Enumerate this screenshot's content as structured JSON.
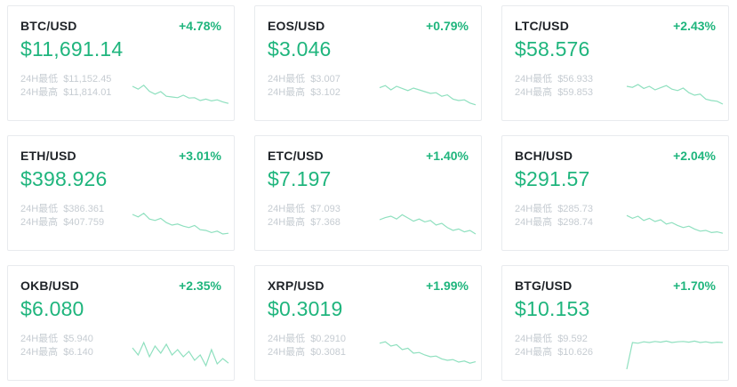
{
  "colors": {
    "accent_up": "#1fb57d",
    "spark_line": "#8fe0bf",
    "muted_text": "#c6ccd2",
    "border": "#e8ebee"
  },
  "tickers": [
    {
      "pair": "BTC/USD",
      "change": "+4.78%",
      "price": "$11,691.14",
      "low_label": "24H最低",
      "low": "$11,152.45",
      "high_label": "24H最高",
      "high": "$11,814.01",
      "trend": [
        0.3,
        0.38,
        0.27,
        0.44,
        0.52,
        0.45,
        0.58,
        0.6,
        0.62,
        0.55,
        0.63,
        0.62,
        0.7,
        0.66,
        0.71,
        0.68,
        0.74,
        0.78
      ]
    },
    {
      "pair": "EOS/USD",
      "change": "+0.79%",
      "price": "$3.046",
      "low_label": "24H最低",
      "low": "$3.007",
      "high_label": "24H最高",
      "high": "$3.102",
      "trend": [
        0.34,
        0.28,
        0.4,
        0.3,
        0.36,
        0.42,
        0.35,
        0.4,
        0.45,
        0.5,
        0.48,
        0.58,
        0.54,
        0.66,
        0.7,
        0.68,
        0.77,
        0.82
      ]
    },
    {
      "pair": "LTC/USD",
      "change": "+2.43%",
      "price": "$58.576",
      "low_label": "24H最低",
      "low": "$56.933",
      "high_label": "24H最高",
      "high": "$59.853",
      "trend": [
        0.3,
        0.33,
        0.25,
        0.36,
        0.3,
        0.4,
        0.34,
        0.28,
        0.38,
        0.42,
        0.35,
        0.48,
        0.55,
        0.52,
        0.66,
        0.7,
        0.72,
        0.8
      ]
    },
    {
      "pair": "ETH/USD",
      "change": "+3.01%",
      "price": "$398.926",
      "low_label": "24H最低",
      "low": "$386.361",
      "high_label": "24H最高",
      "high": "$407.759",
      "trend": [
        0.25,
        0.32,
        0.22,
        0.38,
        0.42,
        0.36,
        0.48,
        0.55,
        0.52,
        0.58,
        0.62,
        0.56,
        0.68,
        0.7,
        0.76,
        0.72,
        0.8,
        0.78
      ]
    },
    {
      "pair": "ETC/USD",
      "change": "+1.40%",
      "price": "$7.197",
      "low_label": "24H最低",
      "low": "$7.093",
      "high_label": "24H最高",
      "high": "$7.368",
      "trend": [
        0.4,
        0.34,
        0.3,
        0.38,
        0.26,
        0.35,
        0.44,
        0.38,
        0.46,
        0.42,
        0.55,
        0.5,
        0.62,
        0.7,
        0.66,
        0.74,
        0.7,
        0.8
      ]
    },
    {
      "pair": "BCH/USD",
      "change": "+2.04%",
      "price": "$291.57",
      "low_label": "24H最低",
      "low": "$285.73",
      "high_label": "24H最高",
      "high": "$298.74",
      "trend": [
        0.28,
        0.36,
        0.3,
        0.42,
        0.36,
        0.45,
        0.4,
        0.52,
        0.48,
        0.56,
        0.62,
        0.58,
        0.66,
        0.72,
        0.7,
        0.76,
        0.74,
        0.78
      ]
    },
    {
      "pair": "OKB/USD",
      "change": "+2.35%",
      "price": "$6.080",
      "low_label": "24H最低",
      "low": "$5.940",
      "high_label": "24H最高",
      "high": "$6.140",
      "trend": [
        0.35,
        0.55,
        0.2,
        0.6,
        0.3,
        0.5,
        0.25,
        0.55,
        0.4,
        0.6,
        0.45,
        0.7,
        0.55,
        0.85,
        0.4,
        0.8,
        0.65,
        0.78
      ]
    },
    {
      "pair": "XRP/USD",
      "change": "+1.99%",
      "price": "$0.3019",
      "low_label": "24H最低",
      "low": "$0.2910",
      "high_label": "24H最高",
      "high": "$0.3081",
      "trend": [
        0.22,
        0.18,
        0.3,
        0.26,
        0.4,
        0.36,
        0.5,
        0.48,
        0.55,
        0.6,
        0.58,
        0.66,
        0.7,
        0.68,
        0.75,
        0.72,
        0.78,
        0.74
      ]
    },
    {
      "pair": "BTG/USD",
      "change": "+1.70%",
      "price": "$10.153",
      "low_label": "24H最低",
      "low": "$9.592",
      "high_label": "24H最高",
      "high": "$10.626",
      "trend": [
        0.95,
        0.2,
        0.22,
        0.18,
        0.2,
        0.17,
        0.19,
        0.16,
        0.2,
        0.18,
        0.17,
        0.19,
        0.16,
        0.2,
        0.18,
        0.21,
        0.19,
        0.2
      ]
    }
  ]
}
